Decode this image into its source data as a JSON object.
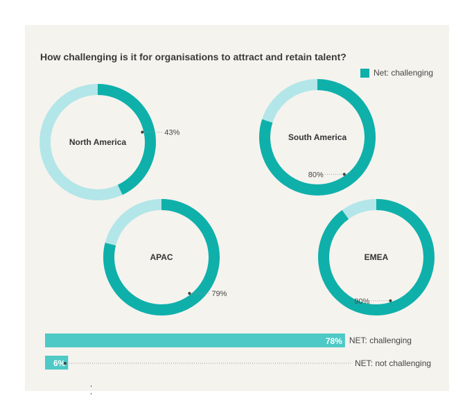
{
  "title": "How challenging is it for organisations to attract and retain talent?",
  "legend": {
    "label": "Net: challenging"
  },
  "colors": {
    "primary": "#0fb0aa",
    "light": "#b3e6e8",
    "bar": "#4ec9c6",
    "background": "#f5f3ee"
  },
  "chart_data": [
    {
      "type": "pie",
      "title": "How challenging is it for organisations to attract and retain talent?",
      "legend": [
        "Net: challenging"
      ],
      "legend_position": "top-right",
      "slices": [
        {
          "region": "North America",
          "value": 43,
          "label": "43%"
        },
        {
          "region": "South America",
          "value": 80,
          "label": "80%"
        },
        {
          "region": "APAC",
          "value": 79,
          "label": "79%"
        },
        {
          "region": "EMEA",
          "value": 90,
          "label": "90%"
        }
      ]
    },
    {
      "type": "bar",
      "categories": [
        "NET: challenging",
        "NET: not challenging"
      ],
      "values": [
        78,
        6
      ],
      "labels": [
        "78%",
        "6%"
      ],
      "xlim": [
        0,
        100
      ]
    }
  ]
}
